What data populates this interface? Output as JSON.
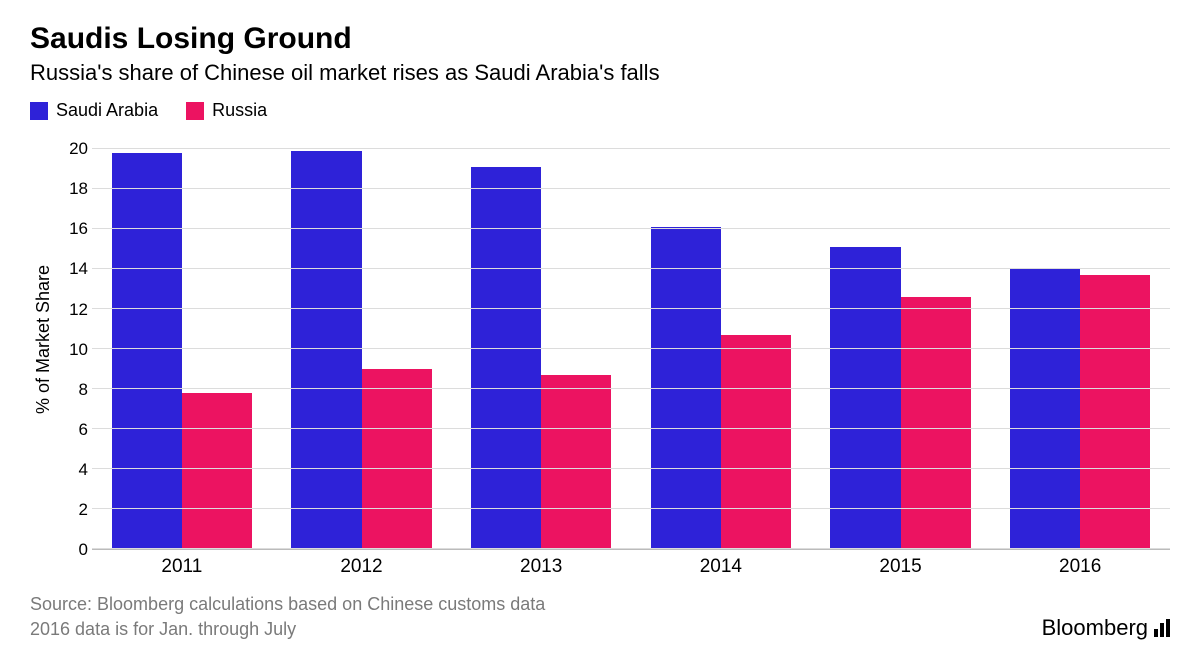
{
  "title": "Saudis Losing Ground",
  "subtitle": "Russia's share of Chinese oil market rises as Saudi Arabia's falls",
  "legend": [
    {
      "label": "Saudi Arabia",
      "color": "#2e22d8"
    },
    {
      "label": "Russia",
      "color": "#ec1361"
    }
  ],
  "chart": {
    "type": "bar",
    "y_label": "% of Market Share",
    "y_min": 0,
    "y_max": 21,
    "y_ticks": [
      0,
      2,
      4,
      6,
      8,
      10,
      12,
      14,
      16,
      18,
      20
    ],
    "grid_color": "#dcdcdc",
    "axis_color": "#bbbbbb",
    "background_color": "#ffffff",
    "bar_width_pct": 44,
    "tick_fontsize": 17,
    "label_fontsize": 18,
    "categories": [
      "2011",
      "2012",
      "2013",
      "2014",
      "2015",
      "2016"
    ],
    "series": [
      {
        "name": "Saudi Arabia",
        "color": "#2e22d8",
        "values": [
          19.8,
          19.9,
          19.1,
          16.1,
          15.1,
          14.0
        ]
      },
      {
        "name": "Russia",
        "color": "#ec1361",
        "values": [
          7.8,
          9.0,
          8.7,
          10.7,
          12.6,
          13.7
        ]
      }
    ]
  },
  "footer": {
    "source_line1": "Source: Bloomberg calculations based on Chinese customs data",
    "source_line2": "2016 data is for Jan. through July",
    "source_color": "#7a7a7a",
    "brand": "Bloomberg"
  }
}
